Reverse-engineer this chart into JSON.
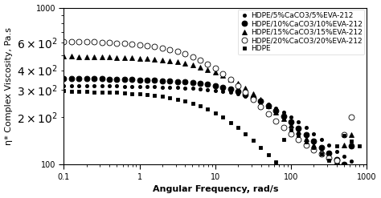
{
  "title": "",
  "xlabel": "Angular Frequency, rad/s",
  "ylabel": "η* Complex Viscosity, Pa.s",
  "xlim": [
    0.1,
    1000
  ],
  "ylim": [
    100,
    1000
  ],
  "series": [
    {
      "label": "HDPE/5%CaCO3/5%EVA-212",
      "marker": "o",
      "markerfacecolor": "black",
      "markeredgecolor": "black",
      "markersize": 3,
      "x": [
        0.1,
        0.126,
        0.158,
        0.2,
        0.251,
        0.316,
        0.398,
        0.501,
        0.631,
        0.794,
        1.0,
        1.26,
        1.58,
        2.0,
        2.51,
        3.16,
        3.98,
        5.01,
        6.31,
        7.94,
        10.0,
        12.6,
        15.8,
        20.0,
        25.1,
        31.6,
        39.8,
        50.1,
        63.1,
        79.4,
        100,
        126,
        158,
        200,
        251,
        316,
        398,
        501,
        631
      ],
      "y": [
        320,
        320,
        319,
        319,
        318,
        318,
        317,
        317,
        316,
        315,
        314,
        314,
        313,
        312,
        311,
        310,
        308,
        306,
        304,
        301,
        297,
        293,
        288,
        282,
        274,
        265,
        255,
        243,
        230,
        216,
        202,
        187,
        172,
        158,
        145,
        133,
        122,
        113,
        105
      ]
    },
    {
      "label": "HDPE/10%CaCO3/10%EVA-212",
      "marker": "o",
      "markerfacecolor": "black",
      "markeredgecolor": "black",
      "markersize": 5,
      "x": [
        0.1,
        0.126,
        0.158,
        0.2,
        0.251,
        0.316,
        0.398,
        0.501,
        0.631,
        0.794,
        1.0,
        1.26,
        1.58,
        2.0,
        2.51,
        3.16,
        3.98,
        5.01,
        6.31,
        7.94,
        10.0,
        12.6,
        15.8,
        20.0,
        25.1,
        31.6,
        39.8,
        50.1,
        63.1,
        79.4,
        100,
        126,
        158,
        200,
        251,
        316,
        398,
        501,
        631
      ],
      "y": [
        355,
        355,
        354,
        353,
        353,
        352,
        351,
        350,
        349,
        348,
        347,
        346,
        345,
        343,
        341,
        339,
        336,
        333,
        329,
        324,
        318,
        311,
        303,
        293,
        281,
        268,
        253,
        237,
        220,
        204,
        187,
        171,
        156,
        142,
        129,
        118,
        108,
        100,
        132
      ]
    },
    {
      "label": "HDPE/15%CaCO3/15%EVA-212",
      "marker": "^",
      "markerfacecolor": "black",
      "markeredgecolor": "black",
      "markersize": 4,
      "x": [
        0.1,
        0.126,
        0.158,
        0.2,
        0.251,
        0.316,
        0.398,
        0.501,
        0.631,
        0.794,
        1.0,
        1.26,
        1.58,
        2.0,
        2.51,
        3.16,
        3.98,
        5.01,
        6.31,
        7.94,
        10.0,
        12.6,
        15.8,
        20.0,
        25.1,
        31.6,
        39.8,
        50.1,
        63.1,
        79.4,
        100,
        126,
        158,
        200,
        251,
        316,
        398,
        501,
        631
      ],
      "y": [
        490,
        489,
        488,
        487,
        486,
        485,
        484,
        482,
        480,
        478,
        475,
        472,
        468,
        463,
        457,
        450,
        441,
        431,
        418,
        404,
        388,
        370,
        350,
        329,
        306,
        283,
        260,
        238,
        217,
        197,
        178,
        162,
        147,
        134,
        123,
        113,
        105,
        133,
        155
      ]
    },
    {
      "label": "HDPE/20%CaCO3/20%EVA-212",
      "marker": "o",
      "markerfacecolor": "white",
      "markeredgecolor": "black",
      "markersize": 5,
      "x": [
        0.1,
        0.126,
        0.158,
        0.2,
        0.251,
        0.316,
        0.398,
        0.501,
        0.631,
        0.794,
        1.0,
        1.26,
        1.58,
        2.0,
        2.51,
        3.16,
        3.98,
        5.01,
        6.31,
        7.94,
        10.0,
        12.6,
        15.8,
        20.0,
        25.1,
        31.6,
        39.8,
        50.1,
        63.1,
        79.4,
        100,
        126,
        158,
        200,
        251,
        316,
        398,
        501,
        631
      ],
      "y": [
        610,
        609,
        607,
        606,
        604,
        602,
        599,
        596,
        592,
        587,
        581,
        574,
        565,
        554,
        541,
        526,
        508,
        488,
        465,
        439,
        411,
        381,
        350,
        319,
        289,
        260,
        234,
        210,
        190,
        172,
        157,
        144,
        133,
        124,
        117,
        111,
        107,
        155,
        200
      ]
    },
    {
      "label": "HDPE",
      "marker": "s",
      "markerfacecolor": "black",
      "markeredgecolor": "black",
      "markersize": 3,
      "x": [
        0.1,
        0.126,
        0.158,
        0.2,
        0.251,
        0.316,
        0.398,
        0.501,
        0.631,
        0.794,
        1.0,
        1.26,
        1.58,
        2.0,
        2.51,
        3.16,
        3.98,
        5.01,
        6.31,
        7.94,
        10.0,
        12.6,
        15.8,
        20.0,
        25.1,
        31.6,
        39.8,
        50.1,
        63.1,
        79.4,
        100,
        126,
        158,
        200,
        251,
        316,
        398,
        501,
        631,
        794
      ],
      "y": [
        295,
        294,
        293,
        292,
        291,
        290,
        289,
        288,
        286,
        284,
        282,
        279,
        276,
        272,
        267,
        261,
        254,
        246,
        236,
        225,
        213,
        200,
        186,
        172,
        157,
        143,
        129,
        116,
        104,
        145,
        167,
        153,
        140,
        128,
        117,
        107,
        131,
        153,
        142,
        131
      ]
    }
  ],
  "legend_loc": "upper right",
  "fontsize": 6.5,
  "tick_fontsize": 7,
  "label_fontsize": 8,
  "xlabel_fontweight": "bold",
  "ylabel_fontweight": "normal"
}
